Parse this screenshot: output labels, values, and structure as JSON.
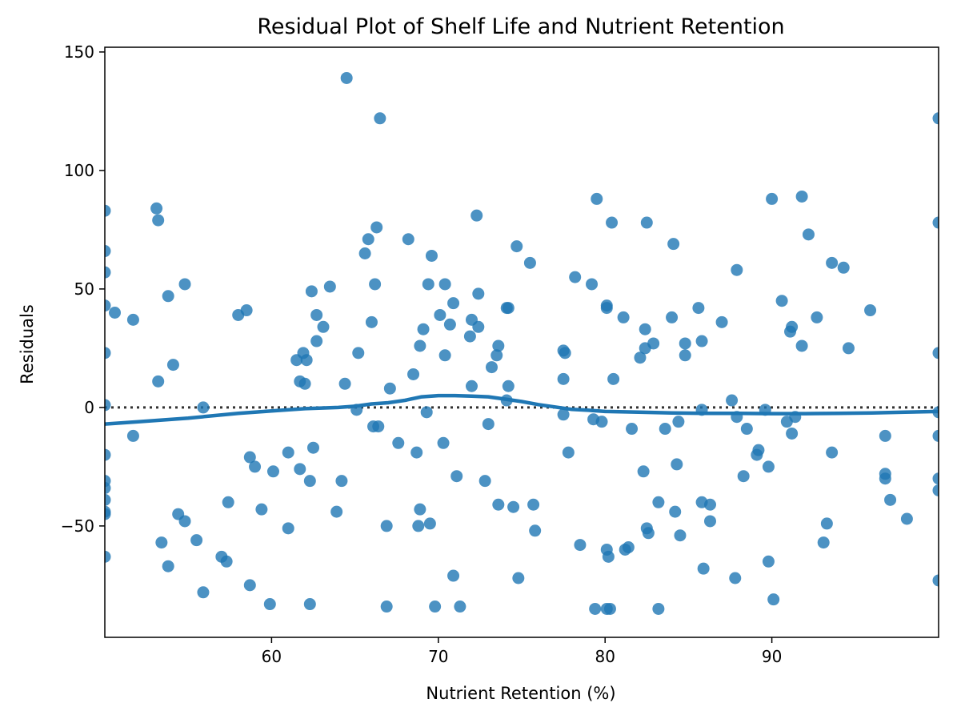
{
  "chart_data": {
    "type": "scatter",
    "title": "Residual Plot of Shelf Life and Nutrient Retention",
    "xlabel": "Nutrient Retention (%)",
    "ylabel": "Residuals",
    "xlim": [
      50,
      100
    ],
    "ylim": [
      -97,
      152
    ],
    "x_ticks": [
      60,
      70,
      80,
      90
    ],
    "x_tick_labels": [
      "60",
      "70",
      "80",
      "90"
    ],
    "y_ticks": [
      -50,
      0,
      50,
      100,
      150
    ],
    "y_tick_labels": [
      "−50",
      "0",
      "50",
      "100",
      "150"
    ],
    "grid": false,
    "legend": "none",
    "colors": {
      "points": "#1f77b4",
      "lowess": "#1f77b4",
      "zero_line": "#333333"
    },
    "zero_line": {
      "y": 0,
      "style": "dotted"
    },
    "points": [
      [
        50.0,
        83
      ],
      [
        50.0,
        66
      ],
      [
        50.0,
        57
      ],
      [
        50.0,
        43
      ],
      [
        50.0,
        23
      ],
      [
        50.0,
        1
      ],
      [
        50.0,
        -20
      ],
      [
        50.0,
        -31
      ],
      [
        50.0,
        -34
      ],
      [
        50.0,
        -39
      ],
      [
        50.0,
        -44
      ],
      [
        50.0,
        -45
      ],
      [
        50.0,
        -63
      ],
      [
        50.6,
        40
      ],
      [
        51.7,
        37
      ],
      [
        51.7,
        -12
      ],
      [
        53.1,
        84
      ],
      [
        53.2,
        79
      ],
      [
        53.2,
        11
      ],
      [
        53.4,
        -57
      ],
      [
        53.8,
        47
      ],
      [
        53.8,
        -67
      ],
      [
        54.1,
        18
      ],
      [
        54.4,
        -45
      ],
      [
        54.8,
        52
      ],
      [
        54.8,
        -48
      ],
      [
        55.5,
        -56
      ],
      [
        55.9,
        0
      ],
      [
        55.9,
        -78
      ],
      [
        57.0,
        -63
      ],
      [
        57.3,
        -65
      ],
      [
        57.4,
        -40
      ],
      [
        58.0,
        39
      ],
      [
        58.5,
        41
      ],
      [
        58.7,
        -21
      ],
      [
        58.7,
        -75
      ],
      [
        59.0,
        -25
      ],
      [
        59.4,
        -43
      ],
      [
        59.9,
        -83
      ],
      [
        60.1,
        -27
      ],
      [
        61.0,
        -19
      ],
      [
        61.0,
        -51
      ],
      [
        61.5,
        20
      ],
      [
        61.7,
        11
      ],
      [
        61.7,
        -26
      ],
      [
        61.9,
        23
      ],
      [
        62.0,
        10
      ],
      [
        62.1,
        20
      ],
      [
        62.3,
        -31
      ],
      [
        62.3,
        -83
      ],
      [
        62.4,
        49
      ],
      [
        62.5,
        -17
      ],
      [
        62.7,
        39
      ],
      [
        62.7,
        28
      ],
      [
        63.1,
        34
      ],
      [
        63.5,
        51
      ],
      [
        63.9,
        -44
      ],
      [
        64.2,
        -31
      ],
      [
        64.4,
        10
      ],
      [
        64.5,
        139
      ],
      [
        65.1,
        -1
      ],
      [
        65.2,
        23
      ],
      [
        65.6,
        65
      ],
      [
        65.8,
        71
      ],
      [
        66.0,
        36
      ],
      [
        66.1,
        -8
      ],
      [
        66.2,
        52
      ],
      [
        66.3,
        76
      ],
      [
        66.4,
        -8
      ],
      [
        66.5,
        122
      ],
      [
        66.9,
        -50
      ],
      [
        66.9,
        -84
      ],
      [
        67.1,
        8
      ],
      [
        67.6,
        -15
      ],
      [
        68.2,
        71
      ],
      [
        68.5,
        14
      ],
      [
        68.7,
        -19
      ],
      [
        68.8,
        -50
      ],
      [
        68.9,
        26
      ],
      [
        68.9,
        -43
      ],
      [
        69.1,
        33
      ],
      [
        69.3,
        -2
      ],
      [
        69.4,
        52
      ],
      [
        69.5,
        -49
      ],
      [
        69.6,
        64
      ],
      [
        69.8,
        -84
      ],
      [
        70.1,
        39
      ],
      [
        70.3,
        -15
      ],
      [
        70.4,
        22
      ],
      [
        70.4,
        52
      ],
      [
        70.7,
        35
      ],
      [
        70.9,
        44
      ],
      [
        70.9,
        -71
      ],
      [
        71.1,
        -29
      ],
      [
        71.3,
        -84
      ],
      [
        71.9,
        30
      ],
      [
        72.0,
        9
      ],
      [
        72.0,
        37
      ],
      [
        72.3,
        81
      ],
      [
        72.4,
        34
      ],
      [
        72.4,
        48
      ],
      [
        72.8,
        -31
      ],
      [
        73.0,
        -7
      ],
      [
        73.2,
        17
      ],
      [
        73.5,
        22
      ],
      [
        73.6,
        26
      ],
      [
        73.6,
        -41
      ],
      [
        74.1,
        42
      ],
      [
        74.1,
        3
      ],
      [
        74.2,
        42
      ],
      [
        74.2,
        9
      ],
      [
        74.5,
        -42
      ],
      [
        74.7,
        68
      ],
      [
        74.8,
        -72
      ],
      [
        75.5,
        61
      ],
      [
        75.7,
        -41
      ],
      [
        75.8,
        -52
      ],
      [
        77.5,
        12
      ],
      [
        77.5,
        24
      ],
      [
        77.5,
        -3
      ],
      [
        77.6,
        23
      ],
      [
        77.8,
        -19
      ],
      [
        78.2,
        55
      ],
      [
        78.5,
        -58
      ],
      [
        79.2,
        52
      ],
      [
        79.3,
        -5
      ],
      [
        79.4,
        -85
      ],
      [
        79.5,
        88
      ],
      [
        79.8,
        -6
      ],
      [
        80.1,
        43
      ],
      [
        80.1,
        -60
      ],
      [
        80.1,
        42
      ],
      [
        80.1,
        -85
      ],
      [
        80.2,
        -63
      ],
      [
        80.3,
        -85
      ],
      [
        80.4,
        78
      ],
      [
        80.5,
        12
      ],
      [
        81.1,
        38
      ],
      [
        81.2,
        -60
      ],
      [
        81.4,
        -59
      ],
      [
        81.6,
        -9
      ],
      [
        82.1,
        21
      ],
      [
        82.3,
        -27
      ],
      [
        82.4,
        25
      ],
      [
        82.4,
        33
      ],
      [
        82.5,
        78
      ],
      [
        82.5,
        -51
      ],
      [
        82.6,
        -53
      ],
      [
        82.9,
        27
      ],
      [
        83.2,
        -40
      ],
      [
        83.2,
        -85
      ],
      [
        83.6,
        -9
      ],
      [
        84.0,
        38
      ],
      [
        84.1,
        69
      ],
      [
        84.2,
        -44
      ],
      [
        84.3,
        -24
      ],
      [
        84.4,
        -6
      ],
      [
        84.5,
        -54
      ],
      [
        84.8,
        27
      ],
      [
        84.8,
        22
      ],
      [
        85.6,
        42
      ],
      [
        85.8,
        28
      ],
      [
        85.8,
        -40
      ],
      [
        85.8,
        -1
      ],
      [
        85.9,
        -68
      ],
      [
        86.3,
        -41
      ],
      [
        86.3,
        -48
      ],
      [
        87.0,
        36
      ],
      [
        87.6,
        3
      ],
      [
        87.8,
        -72
      ],
      [
        87.9,
        58
      ],
      [
        87.9,
        -4
      ],
      [
        88.3,
        -29
      ],
      [
        88.5,
        -9
      ],
      [
        89.1,
        -20
      ],
      [
        89.2,
        -18
      ],
      [
        89.6,
        -1
      ],
      [
        89.8,
        -25
      ],
      [
        89.8,
        -65
      ],
      [
        90.0,
        88
      ],
      [
        90.1,
        -81
      ],
      [
        90.6,
        45
      ],
      [
        90.9,
        -6
      ],
      [
        91.1,
        32
      ],
      [
        91.2,
        34
      ],
      [
        91.2,
        -11
      ],
      [
        91.4,
        -4
      ],
      [
        91.8,
        89
      ],
      [
        91.8,
        26
      ],
      [
        92.2,
        73
      ],
      [
        92.7,
        38
      ],
      [
        93.1,
        -57
      ],
      [
        93.3,
        -49
      ],
      [
        93.6,
        61
      ],
      [
        93.6,
        -19
      ],
      [
        94.3,
        59
      ],
      [
        94.6,
        25
      ],
      [
        95.9,
        41
      ],
      [
        96.8,
        -12
      ],
      [
        96.8,
        -28
      ],
      [
        96.8,
        -30
      ],
      [
        97.1,
        -39
      ],
      [
        98.1,
        -47
      ],
      [
        100.0,
        122
      ],
      [
        100.0,
        78
      ],
      [
        100.0,
        23
      ],
      [
        100.0,
        -2
      ],
      [
        100.0,
        -12
      ],
      [
        100.0,
        -30
      ],
      [
        100.0,
        -35
      ],
      [
        100.0,
        -73
      ]
    ],
    "lowess": [
      [
        50.0,
        -7
      ],
      [
        52.0,
        -6
      ],
      [
        55.0,
        -4.5
      ],
      [
        58.0,
        -2.5
      ],
      [
        60.0,
        -1.5
      ],
      [
        62.0,
        -0.5
      ],
      [
        64.0,
        0
      ],
      [
        65.0,
        0.5
      ],
      [
        66.0,
        1.5
      ],
      [
        67.0,
        2
      ],
      [
        68.0,
        3
      ],
      [
        69.0,
        4.5
      ],
      [
        70.0,
        5
      ],
      [
        71.0,
        5
      ],
      [
        72.0,
        4.8
      ],
      [
        73.0,
        4.5
      ],
      [
        74.0,
        3.5
      ],
      [
        75.0,
        2.5
      ],
      [
        76.0,
        1.2
      ],
      [
        77.0,
        0.2
      ],
      [
        78.0,
        -0.8
      ],
      [
        79.0,
        -1.2
      ],
      [
        80.0,
        -1.7
      ],
      [
        82.0,
        -2
      ],
      [
        84.0,
        -2.3
      ],
      [
        86.0,
        -2.5
      ],
      [
        88.0,
        -2.5
      ],
      [
        90.0,
        -2.6
      ],
      [
        92.0,
        -2.6
      ],
      [
        94.0,
        -2.5
      ],
      [
        96.0,
        -2.3
      ],
      [
        98.0,
        -2
      ],
      [
        100.0,
        -1.7
      ]
    ]
  }
}
